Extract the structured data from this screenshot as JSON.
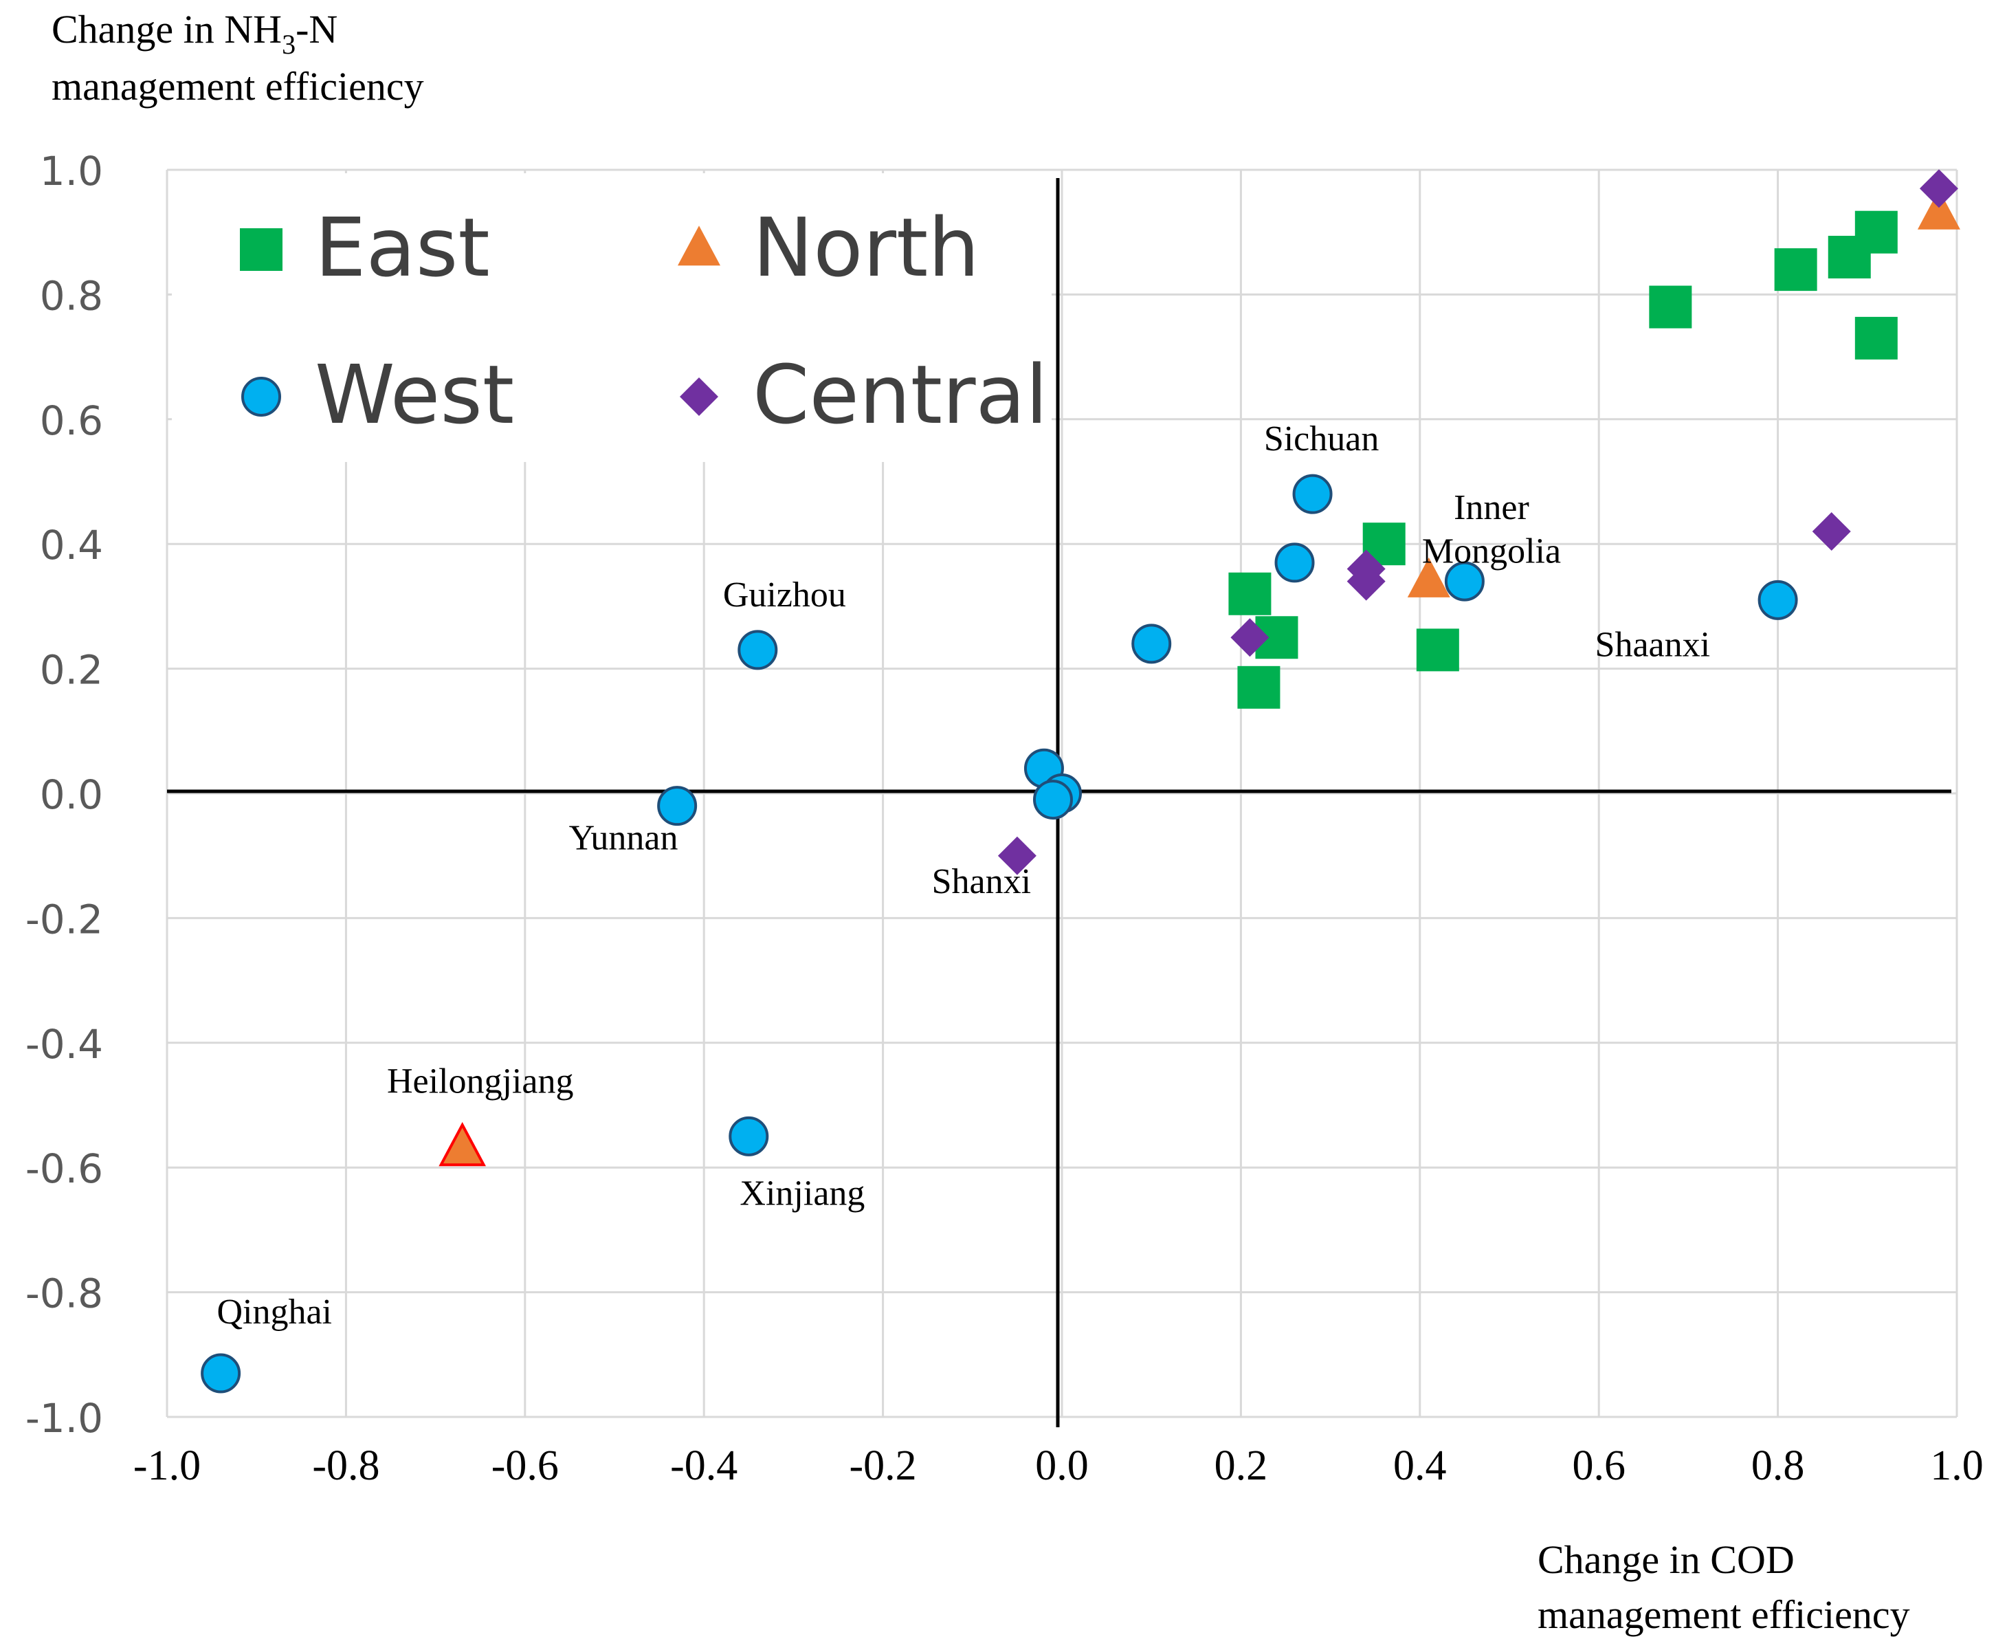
{
  "chart_data": {
    "type": "scatter",
    "ylabel_line1_pre": "Change in NH",
    "ylabel_sub": "3",
    "ylabel_line1_post": "-N",
    "ylabel_line2": "management efficiency",
    "xlabel_line1": "Change in COD",
    "xlabel_line2": "management efficiency",
    "xlim": [
      -1.0,
      1.0
    ],
    "ylim": [
      -1.0,
      1.0
    ],
    "xticks": [
      "-1.0",
      "-0.8",
      "-0.6",
      "-0.4",
      "-0.2",
      "0.0",
      "0.2",
      "0.4",
      "0.6",
      "0.8",
      "1.0"
    ],
    "yticks": [
      "1.0",
      "0.8",
      "0.6",
      "0.4",
      "0.2",
      "0.0",
      "-0.2",
      "-0.4",
      "-0.6",
      "-0.8",
      "-1.0"
    ],
    "grid": true,
    "legend_position": "top-left",
    "legend": [
      {
        "name": "East",
        "marker": "square",
        "color": "#00b050"
      },
      {
        "name": "North",
        "marker": "triangle",
        "color": "#ed7d31"
      },
      {
        "name": "West",
        "marker": "circle",
        "color": "#00b0f0"
      },
      {
        "name": "Central",
        "marker": "diamond",
        "color": "#7030a0"
      }
    ],
    "series": [
      {
        "name": "East",
        "marker": "square",
        "color": "#00b050",
        "points": [
          [
            0.68,
            0.78
          ],
          [
            0.82,
            0.84
          ],
          [
            0.88,
            0.86
          ],
          [
            0.91,
            0.9
          ],
          [
            0.91,
            0.73
          ],
          [
            0.36,
            0.4
          ],
          [
            0.21,
            0.32
          ],
          [
            0.24,
            0.25
          ],
          [
            0.22,
            0.17
          ],
          [
            0.42,
            0.23
          ]
        ]
      },
      {
        "name": "North",
        "marker": "triangle",
        "color": "#ed7d31",
        "points": [
          [
            0.98,
            0.93
          ],
          [
            0.41,
            0.34
          ],
          [
            -0.67,
            -0.57
          ]
        ]
      },
      {
        "name": "West",
        "marker": "circle",
        "color": "#00b0f0",
        "points": [
          [
            0.28,
            0.48
          ],
          [
            0.26,
            0.37
          ],
          [
            0.45,
            0.34
          ],
          [
            0.8,
            0.31
          ],
          [
            0.1,
            0.24
          ],
          [
            -0.34,
            0.23
          ],
          [
            -0.43,
            -0.02
          ],
          [
            -0.02,
            0.04
          ],
          [
            0.0,
            0.0
          ],
          [
            -0.01,
            -0.01
          ],
          [
            -0.35,
            -0.55
          ],
          [
            -0.94,
            -0.93
          ]
        ]
      },
      {
        "name": "Central",
        "marker": "diamond",
        "color": "#7030a0",
        "points": [
          [
            0.98,
            0.97
          ],
          [
            0.86,
            0.42
          ],
          [
            0.34,
            0.36
          ],
          [
            0.34,
            0.34
          ],
          [
            0.21,
            0.25
          ],
          [
            -0.05,
            -0.1
          ]
        ]
      }
    ],
    "annotations": [
      {
        "text": "Sichuan",
        "x": 0.29,
        "y": 0.55
      },
      {
        "text": "Inner",
        "x": 0.48,
        "y": 0.44
      },
      {
        "text": "Mongolia",
        "x": 0.48,
        "y": 0.37
      },
      {
        "text": "Shaanxi",
        "x": 0.66,
        "y": 0.22
      },
      {
        "text": "Guizhou",
        "x": -0.31,
        "y": 0.3
      },
      {
        "text": "Yunnan",
        "x": -0.49,
        "y": -0.09
      },
      {
        "text": "Shanxi",
        "x": -0.09,
        "y": -0.16
      },
      {
        "text": "Heilongjiang",
        "x": -0.65,
        "y": -0.48
      },
      {
        "text": "Xinjiang",
        "x": -0.29,
        "y": -0.66
      },
      {
        "text": "Qinghai",
        "x": -0.88,
        "y": -0.85
      }
    ],
    "highlight_point": {
      "series": "North",
      "index": 2,
      "outline_color": "#ff0000"
    }
  }
}
